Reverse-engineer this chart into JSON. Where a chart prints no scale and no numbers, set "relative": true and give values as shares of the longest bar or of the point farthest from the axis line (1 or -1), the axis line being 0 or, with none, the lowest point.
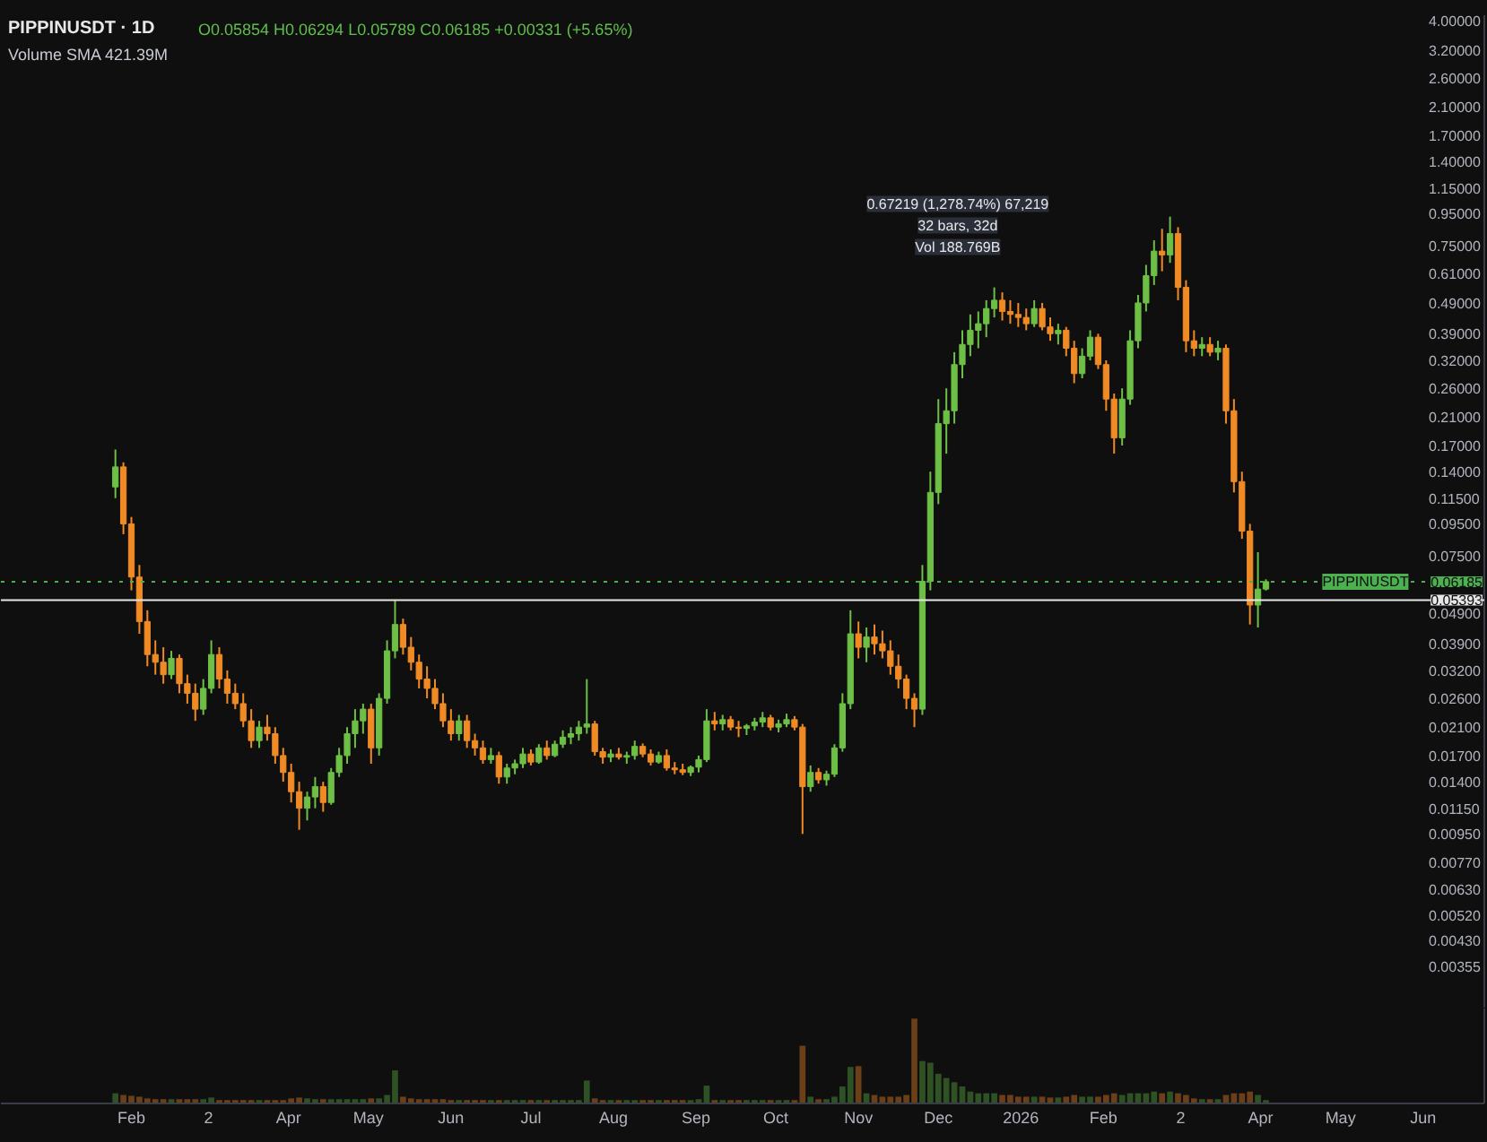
{
  "chart_data": [
    {
      "type": "candlestick",
      "title": "PIPPINUSDT · 1D",
      "subtitle": "O0.05854 H0.06294 L0.05789 C0.06185 +0.00331 (+5.65%)",
      "annotations": [
        "Volume SMA 421.39M",
        "0.67219 (1,278.74%) 67,219\n32 bars, 32d\nVol 188.769B"
      ],
      "x": [
        "2025-01-26",
        "2025-01-29",
        "2025-02-01",
        "2025-02-04",
        "2025-02-07",
        "2025-02-10",
        "2025-02-13",
        "2025-02-16",
        "2025-02-19",
        "2025-02-22",
        "2025-02-25",
        "2025-02-28",
        "2025-03-03",
        "2025-03-06",
        "2025-03-09",
        "2025-03-12",
        "2025-03-15",
        "2025-03-18",
        "2025-03-21",
        "2025-03-24",
        "2025-03-27",
        "2025-03-30",
        "2025-04-02",
        "2025-04-05",
        "2025-04-08",
        "2025-04-11",
        "2025-04-14",
        "2025-04-17",
        "2025-04-20",
        "2025-04-23",
        "2025-04-26",
        "2025-04-29",
        "2025-05-02",
        "2025-05-05",
        "2025-05-08",
        "2025-05-11",
        "2025-05-14",
        "2025-05-17",
        "2025-05-20",
        "2025-05-23",
        "2025-05-26",
        "2025-05-29",
        "2025-06-01",
        "2025-06-04",
        "2025-06-07",
        "2025-06-10",
        "2025-06-13",
        "2025-06-16",
        "2025-06-19",
        "2025-06-22",
        "2025-06-25",
        "2025-06-28",
        "2025-07-01",
        "2025-07-04",
        "2025-07-07",
        "2025-07-10",
        "2025-07-13",
        "2025-07-16",
        "2025-07-19",
        "2025-07-22",
        "2025-07-25",
        "2025-07-28",
        "2025-07-31",
        "2025-08-03",
        "2025-08-06",
        "2025-08-09",
        "2025-08-12",
        "2025-08-15",
        "2025-08-18",
        "2025-08-21",
        "2025-08-24",
        "2025-08-27",
        "2025-08-30",
        "2025-09-02",
        "2025-09-05",
        "2025-09-08",
        "2025-09-11",
        "2025-09-14",
        "2025-09-17",
        "2025-09-20",
        "2025-09-23",
        "2025-09-26",
        "2025-09-29",
        "2025-10-02",
        "2025-10-05",
        "2025-10-08",
        "2025-10-11",
        "2025-10-14",
        "2025-10-17",
        "2025-10-20",
        "2025-10-23",
        "2025-10-26",
        "2025-10-29",
        "2025-11-01",
        "2025-11-04",
        "2025-11-07",
        "2025-11-10",
        "2025-11-13",
        "2025-11-16",
        "2025-11-19",
        "2025-11-22",
        "2025-11-25",
        "2025-11-28",
        "2025-12-01",
        "2025-12-04",
        "2025-12-07",
        "2025-12-10",
        "2025-12-13",
        "2025-12-16",
        "2025-12-19",
        "2025-12-22",
        "2025-12-25",
        "2025-12-28",
        "2025-12-31",
        "2026-01-03",
        "2026-01-06",
        "2026-01-09",
        "2026-01-12",
        "2026-01-15",
        "2026-01-18",
        "2026-01-21",
        "2026-01-24",
        "2026-01-27",
        "2026-01-30",
        "2026-02-02",
        "2026-02-05",
        "2026-02-08",
        "2026-02-11",
        "2026-02-14",
        "2026-02-17",
        "2026-02-20",
        "2026-02-23",
        "2026-02-26",
        "2026-03-01",
        "2026-03-04",
        "2026-03-07",
        "2026-03-10",
        "2026-03-13",
        "2026-03-16",
        "2026-03-19",
        "2026-03-22",
        "2026-03-25",
        "2026-03-28",
        "2026-03-31",
        "2026-04-03"
      ],
      "ohlc": [
        [
          0.125,
          0.165,
          0.115,
          0.145
        ],
        [
          0.145,
          0.15,
          0.088,
          0.095
        ],
        [
          0.095,
          0.1,
          0.058,
          0.064
        ],
        [
          0.064,
          0.07,
          0.042,
          0.046
        ],
        [
          0.046,
          0.05,
          0.033,
          0.036
        ],
        [
          0.036,
          0.04,
          0.031,
          0.034
        ],
        [
          0.034,
          0.038,
          0.029,
          0.031
        ],
        [
          0.031,
          0.037,
          0.03,
          0.035
        ],
        [
          0.035,
          0.036,
          0.027,
          0.029
        ],
        [
          0.029,
          0.031,
          0.025,
          0.027
        ],
        [
          0.027,
          0.029,
          0.022,
          0.024
        ],
        [
          0.024,
          0.03,
          0.023,
          0.028
        ],
        [
          0.028,
          0.04,
          0.027,
          0.036
        ],
        [
          0.036,
          0.038,
          0.028,
          0.03
        ],
        [
          0.03,
          0.032,
          0.025,
          0.027
        ],
        [
          0.027,
          0.029,
          0.024,
          0.025
        ],
        [
          0.025,
          0.027,
          0.021,
          0.022
        ],
        [
          0.022,
          0.024,
          0.018,
          0.019
        ],
        [
          0.019,
          0.022,
          0.018,
          0.021
        ],
        [
          0.021,
          0.023,
          0.019,
          0.02
        ],
        [
          0.02,
          0.021,
          0.016,
          0.017
        ],
        [
          0.017,
          0.018,
          0.014,
          0.015
        ],
        [
          0.015,
          0.016,
          0.012,
          0.013
        ],
        [
          0.013,
          0.014,
          0.0098,
          0.0115
        ],
        [
          0.0115,
          0.013,
          0.0105,
          0.0125
        ],
        [
          0.0125,
          0.0145,
          0.0115,
          0.0135
        ],
        [
          0.0135,
          0.014,
          0.0112,
          0.012
        ],
        [
          0.012,
          0.0155,
          0.0118,
          0.015
        ],
        [
          0.015,
          0.018,
          0.0145,
          0.017
        ],
        [
          0.017,
          0.021,
          0.016,
          0.02
        ],
        [
          0.02,
          0.024,
          0.018,
          0.022
        ],
        [
          0.022,
          0.025,
          0.02,
          0.024
        ],
        [
          0.024,
          0.025,
          0.016,
          0.018
        ],
        [
          0.018,
          0.027,
          0.017,
          0.026
        ],
        [
          0.026,
          0.04,
          0.025,
          0.037
        ],
        [
          0.037,
          0.0539,
          0.035,
          0.045
        ],
        [
          0.045,
          0.047,
          0.036,
          0.038
        ],
        [
          0.038,
          0.041,
          0.032,
          0.034
        ],
        [
          0.034,
          0.036,
          0.028,
          0.03
        ],
        [
          0.03,
          0.033,
          0.026,
          0.028
        ],
        [
          0.028,
          0.03,
          0.024,
          0.025
        ],
        [
          0.025,
          0.027,
          0.021,
          0.022
        ],
        [
          0.022,
          0.024,
          0.019,
          0.02
        ],
        [
          0.02,
          0.023,
          0.019,
          0.022
        ],
        [
          0.022,
          0.023,
          0.018,
          0.019
        ],
        [
          0.019,
          0.02,
          0.017,
          0.018
        ],
        [
          0.018,
          0.019,
          0.016,
          0.0165
        ],
        [
          0.0165,
          0.018,
          0.016,
          0.017
        ],
        [
          0.017,
          0.0175,
          0.0138,
          0.0145
        ],
        [
          0.0145,
          0.016,
          0.0138,
          0.0155
        ],
        [
          0.0155,
          0.0165,
          0.0148,
          0.016
        ],
        [
          0.016,
          0.018,
          0.0155,
          0.0172
        ],
        [
          0.0172,
          0.0178,
          0.0158,
          0.0162
        ],
        [
          0.0162,
          0.0185,
          0.016,
          0.018
        ],
        [
          0.018,
          0.019,
          0.0165,
          0.017
        ],
        [
          0.017,
          0.019,
          0.0168,
          0.0185
        ],
        [
          0.0185,
          0.0205,
          0.018,
          0.0195
        ],
        [
          0.0195,
          0.021,
          0.0185,
          0.02
        ],
        [
          0.02,
          0.022,
          0.019,
          0.021
        ],
        [
          0.021,
          0.03,
          0.02,
          0.0215
        ],
        [
          0.0215,
          0.022,
          0.017,
          0.0175
        ],
        [
          0.0175,
          0.018,
          0.016,
          0.0168
        ],
        [
          0.0168,
          0.0178,
          0.0162,
          0.0172
        ],
        [
          0.0172,
          0.018,
          0.0165,
          0.0168
        ],
        [
          0.0168,
          0.0175,
          0.016,
          0.017
        ],
        [
          0.017,
          0.019,
          0.0165,
          0.0182
        ],
        [
          0.0182,
          0.0186,
          0.0168,
          0.0172
        ],
        [
          0.0172,
          0.0178,
          0.0158,
          0.0162
        ],
        [
          0.0162,
          0.0175,
          0.016,
          0.017
        ],
        [
          0.017,
          0.0178,
          0.0152,
          0.0155
        ],
        [
          0.0155,
          0.0162,
          0.0148,
          0.0153
        ],
        [
          0.0153,
          0.016,
          0.0147,
          0.015
        ],
        [
          0.015,
          0.0158,
          0.0146,
          0.0156
        ],
        [
          0.0156,
          0.017,
          0.015,
          0.0165
        ],
        [
          0.0165,
          0.024,
          0.0162,
          0.022
        ],
        [
          0.022,
          0.0235,
          0.0205,
          0.0215
        ],
        [
          0.0215,
          0.023,
          0.0205,
          0.0222
        ],
        [
          0.0222,
          0.0228,
          0.0205,
          0.021
        ],
        [
          0.021,
          0.022,
          0.0195,
          0.0208
        ],
        [
          0.0208,
          0.0215,
          0.0198,
          0.0212
        ],
        [
          0.0212,
          0.0225,
          0.0205,
          0.0218
        ],
        [
          0.0218,
          0.0235,
          0.021,
          0.0225
        ],
        [
          0.0225,
          0.023,
          0.0205,
          0.021
        ],
        [
          0.021,
          0.0222,
          0.0202,
          0.0215
        ],
        [
          0.0215,
          0.0232,
          0.021,
          0.0222
        ],
        [
          0.0222,
          0.0228,
          0.0205,
          0.021
        ],
        [
          0.021,
          0.0215,
          0.0095,
          0.0135
        ],
        [
          0.0135,
          0.0158,
          0.013,
          0.015
        ],
        [
          0.015,
          0.0155,
          0.0138,
          0.0142
        ],
        [
          0.0142,
          0.0152,
          0.0136,
          0.0148
        ],
        [
          0.0148,
          0.0185,
          0.0145,
          0.018
        ],
        [
          0.018,
          0.027,
          0.0175,
          0.025
        ],
        [
          0.025,
          0.05,
          0.024,
          0.042
        ],
        [
          0.042,
          0.046,
          0.035,
          0.038
        ],
        [
          0.038,
          0.044,
          0.034,
          0.041
        ],
        [
          0.041,
          0.045,
          0.036,
          0.039
        ],
        [
          0.039,
          0.043,
          0.035,
          0.037
        ],
        [
          0.037,
          0.04,
          0.031,
          0.033
        ],
        [
          0.033,
          0.036,
          0.028,
          0.03
        ],
        [
          0.03,
          0.031,
          0.024,
          0.026
        ],
        [
          0.026,
          0.027,
          0.021,
          0.024
        ],
        [
          0.024,
          0.07,
          0.023,
          0.062
        ],
        [
          0.062,
          0.14,
          0.058,
          0.12
        ],
        [
          0.12,
          0.24,
          0.11,
          0.2
        ],
        [
          0.2,
          0.26,
          0.16,
          0.22
        ],
        [
          0.22,
          0.34,
          0.2,
          0.31
        ],
        [
          0.31,
          0.4,
          0.28,
          0.36
        ],
        [
          0.36,
          0.45,
          0.33,
          0.4
        ],
        [
          0.4,
          0.46,
          0.35,
          0.42
        ],
        [
          0.42,
          0.5,
          0.38,
          0.47
        ],
        [
          0.47,
          0.55,
          0.44,
          0.5
        ],
        [
          0.5,
          0.53,
          0.43,
          0.46
        ],
        [
          0.46,
          0.5,
          0.42,
          0.45
        ],
        [
          0.45,
          0.49,
          0.41,
          0.44
        ],
        [
          0.44,
          0.47,
          0.4,
          0.42
        ],
        [
          0.42,
          0.5,
          0.41,
          0.47
        ],
        [
          0.47,
          0.49,
          0.4,
          0.41
        ],
        [
          0.41,
          0.44,
          0.37,
          0.39
        ],
        [
          0.39,
          0.42,
          0.36,
          0.4
        ],
        [
          0.4,
          0.41,
          0.33,
          0.35
        ],
        [
          0.35,
          0.37,
          0.27,
          0.29
        ],
        [
          0.29,
          0.35,
          0.28,
          0.33
        ],
        [
          0.33,
          0.4,
          0.32,
          0.38
        ],
        [
          0.38,
          0.39,
          0.3,
          0.31
        ],
        [
          0.31,
          0.32,
          0.22,
          0.24
        ],
        [
          0.24,
          0.25,
          0.16,
          0.18
        ],
        [
          0.18,
          0.26,
          0.17,
          0.24
        ],
        [
          0.24,
          0.4,
          0.23,
          0.37
        ],
        [
          0.37,
          0.52,
          0.35,
          0.49
        ],
        [
          0.49,
          0.65,
          0.46,
          0.6
        ],
        [
          0.6,
          0.78,
          0.56,
          0.72
        ],
        [
          0.72,
          0.85,
          0.62,
          0.7
        ],
        [
          0.7,
          0.93,
          0.66,
          0.82
        ],
        [
          0.82,
          0.86,
          0.5,
          0.55
        ],
        [
          0.55,
          0.58,
          0.34,
          0.37
        ],
        [
          0.37,
          0.4,
          0.33,
          0.35
        ],
        [
          0.35,
          0.38,
          0.33,
          0.36
        ],
        [
          0.36,
          0.38,
          0.33,
          0.34
        ],
        [
          0.34,
          0.37,
          0.32,
          0.35
        ],
        [
          0.35,
          0.36,
          0.2,
          0.22
        ],
        [
          0.22,
          0.24,
          0.12,
          0.13
        ],
        [
          0.13,
          0.14,
          0.085,
          0.09
        ],
        [
          0.09,
          0.095,
          0.045,
          0.052
        ],
        [
          0.052,
          0.077,
          0.044,
          0.05854
        ],
        [
          0.05854,
          0.06294,
          0.05789,
          0.06185
        ]
      ],
      "colors": [
        "#6dbf45",
        "#f08a24",
        "#f08a24",
        "#f08a24",
        "#f08a24",
        "#f08a24",
        "#f08a24",
        "#6dbf45",
        "#f08a24",
        "#f08a24",
        "#f08a24",
        "#6dbf45",
        "#6dbf45",
        "#f08a24",
        "#f08a24",
        "#f08a24",
        "#f08a24",
        "#f08a24",
        "#6dbf45",
        "#f08a24",
        "#f08a24",
        "#f08a24",
        "#f08a24",
        "#f08a24",
        "#6dbf45",
        "#6dbf45",
        "#f08a24",
        "#6dbf45",
        "#6dbf45",
        "#6dbf45",
        "#6dbf45",
        "#6dbf45",
        "#f08a24",
        "#6dbf45",
        "#6dbf45",
        "#6dbf45",
        "#f08a24",
        "#f08a24",
        "#f08a24",
        "#f08a24",
        "#f08a24",
        "#f08a24",
        "#f08a24",
        "#6dbf45",
        "#f08a24",
        "#f08a24",
        "#f08a24",
        "#6dbf45",
        "#f08a24",
        "#6dbf45",
        "#6dbf45",
        "#6dbf45",
        "#f08a24",
        "#6dbf45",
        "#f08a24",
        "#6dbf45",
        "#6dbf45",
        "#6dbf45",
        "#6dbf45",
        "#6dbf45",
        "#f08a24",
        "#f08a24",
        "#6dbf45",
        "#f08a24",
        "#6dbf45",
        "#6dbf45",
        "#f08a24",
        "#f08a24",
        "#6dbf45",
        "#f08a24",
        "#f08a24",
        "#f08a24",
        "#6dbf45",
        "#6dbf45",
        "#6dbf45",
        "#f08a24",
        "#6dbf45",
        "#f08a24",
        "#f08a24",
        "#6dbf45",
        "#6dbf45",
        "#6dbf45",
        "#f08a24",
        "#6dbf45",
        "#6dbf45",
        "#f08a24",
        "#f08a24",
        "#6dbf45",
        "#f08a24",
        "#6dbf45",
        "#6dbf45",
        "#6dbf45",
        "#6dbf45",
        "#f08a24",
        "#6dbf45",
        "#f08a24",
        "#f08a24",
        "#f08a24",
        "#f08a24",
        "#f08a24",
        "#f08a24",
        "#6dbf45",
        "#6dbf45",
        "#6dbf45",
        "#6dbf45",
        "#6dbf45",
        "#6dbf45",
        "#6dbf45",
        "#6dbf45",
        "#6dbf45",
        "#6dbf45",
        "#f08a24",
        "#f08a24",
        "#f08a24",
        "#f08a24",
        "#6dbf45",
        "#f08a24",
        "#f08a24",
        "#6dbf45",
        "#f08a24",
        "#f08a24",
        "#6dbf45",
        "#6dbf45",
        "#f08a24",
        "#f08a24",
        "#f08a24",
        "#6dbf45",
        "#6dbf45",
        "#6dbf45",
        "#6dbf45",
        "#6dbf45",
        "#f08a24",
        "#6dbf45",
        "#f08a24",
        "#f08a24",
        "#f08a24",
        "#6dbf45",
        "#f08a24",
        "#6dbf45",
        "#f08a24",
        "#f08a24",
        "#f08a24",
        "#f08a24",
        "#6dbf45",
        "#6dbf45"
      ],
      "log": true,
      "xlim": [
        "2024-12-14",
        "2026-06-24"
      ],
      "ylim": [
        0.0026,
        4.15
      ],
      "yticks": [
        {
          "value": 4,
          "label": "4.00000"
        },
        {
          "value": 3.2,
          "label": "3.20000"
        },
        {
          "value": 2.6,
          "label": "2.60000"
        },
        {
          "value": 2.1,
          "label": "2.10000"
        },
        {
          "value": 1.7,
          "label": "1.70000"
        },
        {
          "value": 1.4,
          "label": "1.40000"
        },
        {
          "value": 1.15,
          "label": "1.15000"
        },
        {
          "value": 0.95,
          "label": "0.95000"
        },
        {
          "value": 0.75,
          "label": "0.75000"
        },
        {
          "value": 0.61,
          "label": "0.61000"
        },
        {
          "value": 0.49,
          "label": "0.49000"
        },
        {
          "value": 0.39,
          "label": "0.39000"
        },
        {
          "value": 0.32,
          "label": "0.32000"
        },
        {
          "value": 0.26,
          "label": "0.26000"
        },
        {
          "value": 0.21,
          "label": "0.21000"
        },
        {
          "value": 0.17,
          "label": "0.17000"
        },
        {
          "value": 0.14,
          "label": "0.14000"
        },
        {
          "value": 0.115,
          "label": "0.11500"
        },
        {
          "value": 0.095,
          "label": "0.09500"
        },
        {
          "value": 0.075,
          "label": "0.07500"
        },
        {
          "value": 0.049,
          "label": "0.04900"
        },
        {
          "value": 0.039,
          "label": "0.03900"
        },
        {
          "value": 0.032,
          "label": "0.03200"
        },
        {
          "value": 0.026,
          "label": "0.02600"
        },
        {
          "value": 0.021,
          "label": "0.02100"
        },
        {
          "value": 0.017,
          "label": "0.01700"
        },
        {
          "value": 0.014,
          "label": "0.01400"
        },
        {
          "value": 0.0115,
          "label": "0.01150"
        },
        {
          "value": 0.0095,
          "label": "0.00950"
        },
        {
          "value": 0.0077,
          "label": "0.00770"
        },
        {
          "value": 0.0063,
          "label": "0.00630"
        },
        {
          "value": 0.0052,
          "label": "0.00520"
        },
        {
          "value": 0.0043,
          "label": "0.00430"
        },
        {
          "value": 0.00355,
          "label": "0.00355"
        }
      ],
      "tick_labels": "y",
      "ref_lines": [
        {
          "axis": "y",
          "value": 0.05393,
          "label": "0.05393",
          "color": "#e6e6e6"
        },
        {
          "axis": "y",
          "value": 0.06185,
          "label": "PIPPINUSDT 0.06185",
          "color": "#4caf50",
          "line_style": "dotted"
        }
      ]
    },
    {
      "type": "bar",
      "relative": true,
      "tick_labels": "x",
      "x": [
        "2025-01-26",
        "2025-01-29",
        "2025-02-01",
        "2025-02-04",
        "2025-02-07",
        "2025-02-10",
        "2025-02-13",
        "2025-02-16",
        "2025-02-19",
        "2025-02-22",
        "2025-02-25",
        "2025-02-28",
        "2025-03-03",
        "2025-03-06",
        "2025-03-09",
        "2025-03-12",
        "2025-03-15",
        "2025-03-18",
        "2025-03-21",
        "2025-03-24",
        "2025-03-27",
        "2025-03-30",
        "2025-04-02",
        "2025-04-05",
        "2025-04-08",
        "2025-04-11",
        "2025-04-14",
        "2025-04-17",
        "2025-04-20",
        "2025-04-23",
        "2025-04-26",
        "2025-04-29",
        "2025-05-02",
        "2025-05-05",
        "2025-05-08",
        "2025-05-11",
        "2025-05-14",
        "2025-05-17",
        "2025-05-20",
        "2025-05-23",
        "2025-05-26",
        "2025-05-29",
        "2025-06-01",
        "2025-06-04",
        "2025-06-07",
        "2025-06-10",
        "2025-06-13",
        "2025-06-16",
        "2025-06-19",
        "2025-06-22",
        "2025-06-25",
        "2025-06-28",
        "2025-07-01",
        "2025-07-04",
        "2025-07-07",
        "2025-07-10",
        "2025-07-13",
        "2025-07-16",
        "2025-07-19",
        "2025-07-22",
        "2025-07-25",
        "2025-07-28",
        "2025-07-31",
        "2025-08-03",
        "2025-08-06",
        "2025-08-09",
        "2025-08-12",
        "2025-08-15",
        "2025-08-18",
        "2025-08-21",
        "2025-08-24",
        "2025-08-27",
        "2025-08-30",
        "2025-09-02",
        "2025-09-05",
        "2025-09-08",
        "2025-09-11",
        "2025-09-14",
        "2025-09-17",
        "2025-09-20",
        "2025-09-23",
        "2025-09-26",
        "2025-09-29",
        "2025-10-02",
        "2025-10-05",
        "2025-10-08",
        "2025-10-11",
        "2025-10-14",
        "2025-10-17",
        "2025-10-20",
        "2025-10-23",
        "2025-10-26",
        "2025-10-29",
        "2025-11-01",
        "2025-11-04",
        "2025-11-07",
        "2025-11-10",
        "2025-11-13",
        "2025-11-16",
        "2025-11-19",
        "2025-11-22",
        "2025-11-25",
        "2025-11-28",
        "2025-12-01",
        "2025-12-04",
        "2025-12-07",
        "2025-12-10",
        "2025-12-13",
        "2025-12-16",
        "2025-12-19",
        "2025-12-22",
        "2025-12-25",
        "2025-12-28",
        "2025-12-31",
        "2026-01-03",
        "2026-01-06",
        "2026-01-09",
        "2026-01-12",
        "2026-01-15",
        "2026-01-18",
        "2026-01-21",
        "2026-01-24",
        "2026-01-27",
        "2026-01-30",
        "2026-02-02",
        "2026-02-05",
        "2026-02-08",
        "2026-02-11",
        "2026-02-14",
        "2026-02-17",
        "2026-02-20",
        "2026-02-23",
        "2026-02-26",
        "2026-03-01",
        "2026-03-04",
        "2026-03-07",
        "2026-03-10",
        "2026-03-13",
        "2026-03-16",
        "2026-03-19",
        "2026-03-22",
        "2026-03-25",
        "2026-03-28",
        "2026-03-31",
        "2026-04-03"
      ],
      "values": [
        0.12,
        0.1,
        0.09,
        0.08,
        0.06,
        0.05,
        0.05,
        0.05,
        0.05,
        0.05,
        0.05,
        0.05,
        0.07,
        0.04,
        0.04,
        0.04,
        0.04,
        0.04,
        0.04,
        0.04,
        0.04,
        0.04,
        0.06,
        0.07,
        0.06,
        0.05,
        0.05,
        0.05,
        0.05,
        0.05,
        0.05,
        0.05,
        0.06,
        0.06,
        0.1,
        0.39,
        0.08,
        0.06,
        0.05,
        0.05,
        0.05,
        0.05,
        0.04,
        0.04,
        0.04,
        0.04,
        0.04,
        0.04,
        0.04,
        0.04,
        0.04,
        0.04,
        0.04,
        0.04,
        0.04,
        0.04,
        0.04,
        0.04,
        0.04,
        0.27,
        0.06,
        0.04,
        0.04,
        0.04,
        0.04,
        0.04,
        0.04,
        0.04,
        0.04,
        0.04,
        0.04,
        0.04,
        0.04,
        0.05,
        0.21,
        0.04,
        0.04,
        0.04,
        0.04,
        0.04,
        0.04,
        0.04,
        0.04,
        0.04,
        0.04,
        0.04,
        0.68,
        0.08,
        0.05,
        0.05,
        0.08,
        0.2,
        0.43,
        0.44,
        0.12,
        0.1,
        0.08,
        0.08,
        0.08,
        0.1,
        1,
        0.5,
        0.48,
        0.35,
        0.3,
        0.25,
        0.2,
        0.14,
        0.12,
        0.12,
        0.12,
        0.1,
        0.1,
        0.08,
        0.08,
        0.08,
        0.08,
        0.07,
        0.07,
        0.08,
        0.1,
        0.08,
        0.08,
        0.08,
        0.1,
        0.12,
        0.1,
        0.12,
        0.12,
        0.12,
        0.14,
        0.12,
        0.14,
        0.12,
        0.1,
        0.06,
        0.05,
        0.05,
        0.05,
        0.1,
        0.12,
        0.12,
        0.14,
        0.1,
        0.04
      ],
      "colors": [
        "#2f5224",
        "#6b3f18",
        "#6b3f18",
        "#6b3f18",
        "#6b3f18",
        "#6b3f18",
        "#6b3f18",
        "#2f5224",
        "#6b3f18",
        "#6b3f18",
        "#6b3f18",
        "#2f5224",
        "#2f5224",
        "#6b3f18",
        "#6b3f18",
        "#6b3f18",
        "#6b3f18",
        "#6b3f18",
        "#2f5224",
        "#6b3f18",
        "#6b3f18",
        "#6b3f18",
        "#6b3f18",
        "#6b3f18",
        "#2f5224",
        "#2f5224",
        "#6b3f18",
        "#2f5224",
        "#2f5224",
        "#2f5224",
        "#2f5224",
        "#2f5224",
        "#6b3f18",
        "#2f5224",
        "#2f5224",
        "#2f5224",
        "#6b3f18",
        "#6b3f18",
        "#6b3f18",
        "#6b3f18",
        "#6b3f18",
        "#6b3f18",
        "#6b3f18",
        "#2f5224",
        "#6b3f18",
        "#6b3f18",
        "#6b3f18",
        "#2f5224",
        "#6b3f18",
        "#2f5224",
        "#2f5224",
        "#2f5224",
        "#6b3f18",
        "#2f5224",
        "#6b3f18",
        "#2f5224",
        "#2f5224",
        "#2f5224",
        "#2f5224",
        "#2f5224",
        "#6b3f18",
        "#6b3f18",
        "#2f5224",
        "#6b3f18",
        "#2f5224",
        "#2f5224",
        "#6b3f18",
        "#6b3f18",
        "#2f5224",
        "#6b3f18",
        "#6b3f18",
        "#6b3f18",
        "#2f5224",
        "#2f5224",
        "#2f5224",
        "#6b3f18",
        "#2f5224",
        "#6b3f18",
        "#6b3f18",
        "#2f5224",
        "#2f5224",
        "#2f5224",
        "#6b3f18",
        "#2f5224",
        "#2f5224",
        "#6b3f18",
        "#6b3f18",
        "#2f5224",
        "#6b3f18",
        "#2f5224",
        "#2f5224",
        "#2f5224",
        "#2f5224",
        "#6b3f18",
        "#2f5224",
        "#6b3f18",
        "#6b3f18",
        "#6b3f18",
        "#6b3f18",
        "#6b3f18",
        "#6b3f18",
        "#2f5224",
        "#2f5224",
        "#2f5224",
        "#2f5224",
        "#2f5224",
        "#2f5224",
        "#2f5224",
        "#2f5224",
        "#2f5224",
        "#2f5224",
        "#6b3f18",
        "#6b3f18",
        "#6b3f18",
        "#6b3f18",
        "#2f5224",
        "#6b3f18",
        "#6b3f18",
        "#2f5224",
        "#6b3f18",
        "#6b3f18",
        "#2f5224",
        "#2f5224",
        "#6b3f18",
        "#6b3f18",
        "#6b3f18",
        "#2f5224",
        "#2f5224",
        "#2f5224",
        "#2f5224",
        "#2f5224",
        "#6b3f18",
        "#2f5224",
        "#6b3f18",
        "#6b3f18",
        "#6b3f18",
        "#2f5224",
        "#6b3f18",
        "#2f5224",
        "#6b3f18",
        "#6b3f18",
        "#6b3f18",
        "#6b3f18",
        "#2f5224",
        "#2f5224"
      ],
      "xlim": [
        "2024-12-14",
        "2026-06-24"
      ],
      "xticks": [
        {
          "value": "2025-02-01",
          "label": "Feb"
        },
        {
          "value": "2025-03-02",
          "label": "2"
        },
        {
          "value": "2025-04-01",
          "label": "Apr"
        },
        {
          "value": "2025-05-01",
          "label": "May"
        },
        {
          "value": "2025-06-01",
          "label": "Jun"
        },
        {
          "value": "2025-07-01",
          "label": "Jul"
        },
        {
          "value": "2025-08-01",
          "label": "Aug"
        },
        {
          "value": "2025-09-01",
          "label": "Sep"
        },
        {
          "value": "2025-10-01",
          "label": "Oct"
        },
        {
          "value": "2025-11-01",
          "label": "Nov"
        },
        {
          "value": "2025-12-01",
          "label": "Dec"
        },
        {
          "value": "2026-01-01",
          "label": "2026"
        },
        {
          "value": "2026-02-01",
          "label": "Feb"
        },
        {
          "value": "2026-03-02",
          "label": "2"
        },
        {
          "value": "2026-04-01",
          "label": "Apr"
        },
        {
          "value": "2026-05-01",
          "label": "May"
        },
        {
          "value": "2026-06-01",
          "label": "Jun"
        }
      ]
    }
  ]
}
